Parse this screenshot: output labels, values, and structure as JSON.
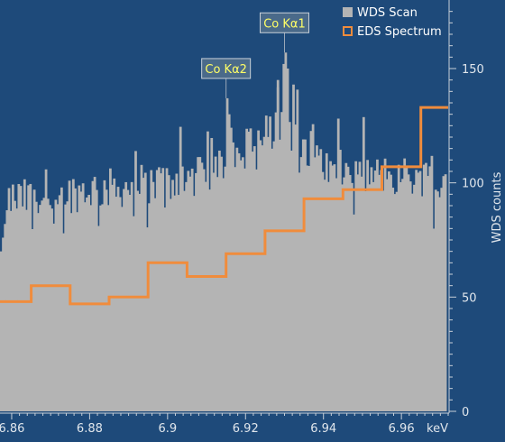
{
  "chart_data": {
    "type": "bar",
    "title": "",
    "xlabel": "",
    "x_unit": "keV",
    "ylabel": "WDS counts",
    "xlim": [
      6.857,
      6.972
    ],
    "ylim": [
      0,
      180
    ],
    "x_ticks": [
      "6.86",
      "6.88",
      "6.9",
      "6.92",
      "6.94",
      "6.96"
    ],
    "y_ticks": [
      "0",
      "50",
      "100",
      "150"
    ],
    "grid": false,
    "legend": {
      "placement": "top-right",
      "entries": [
        "WDS Scan",
        "EDS Spectrum"
      ]
    },
    "colors": {
      "background": "#1e4a7a",
      "wds": "#b4b4b4",
      "eds": "#f08c3c",
      "annotation_text": "#ffff66",
      "annotation_box": "#4a6a8a"
    },
    "series": [
      {
        "name": "WDS Scan",
        "type": "bar",
        "x_range": [
          6.857,
          6.971
        ],
        "x_step": 0.0005,
        "baseline": [
          [
            6.857,
            93
          ],
          [
            6.87,
            95
          ],
          [
            6.88,
            98
          ],
          [
            6.89,
            99
          ],
          [
            6.9,
            102
          ],
          [
            6.91,
            104
          ],
          [
            6.915,
            112
          ],
          [
            6.92,
            115
          ],
          [
            6.925,
            122
          ],
          [
            6.93,
            124
          ],
          [
            6.935,
            118
          ],
          [
            6.94,
            108
          ],
          [
            6.95,
            104
          ],
          [
            6.96,
            104
          ],
          [
            6.971,
            103
          ]
        ]
      },
      {
        "name": "EDS Spectrum",
        "type": "step",
        "steps": [
          [
            6.857,
            6.865,
            48
          ],
          [
            6.865,
            6.875,
            55
          ],
          [
            6.875,
            6.885,
            47
          ],
          [
            6.885,
            6.895,
            50
          ],
          [
            6.895,
            6.905,
            65
          ],
          [
            6.905,
            6.915,
            59
          ],
          [
            6.915,
            6.925,
            69
          ],
          [
            6.925,
            6.935,
            79
          ],
          [
            6.935,
            6.945,
            93
          ],
          [
            6.945,
            6.955,
            97
          ],
          [
            6.955,
            6.965,
            107
          ],
          [
            6.965,
            6.972,
            133
          ]
        ]
      }
    ],
    "annotations": [
      {
        "label": "Co Kα2",
        "x": 6.915,
        "y": 137
      },
      {
        "label": "Co Kα1",
        "x": 6.93,
        "y": 157
      }
    ]
  }
}
